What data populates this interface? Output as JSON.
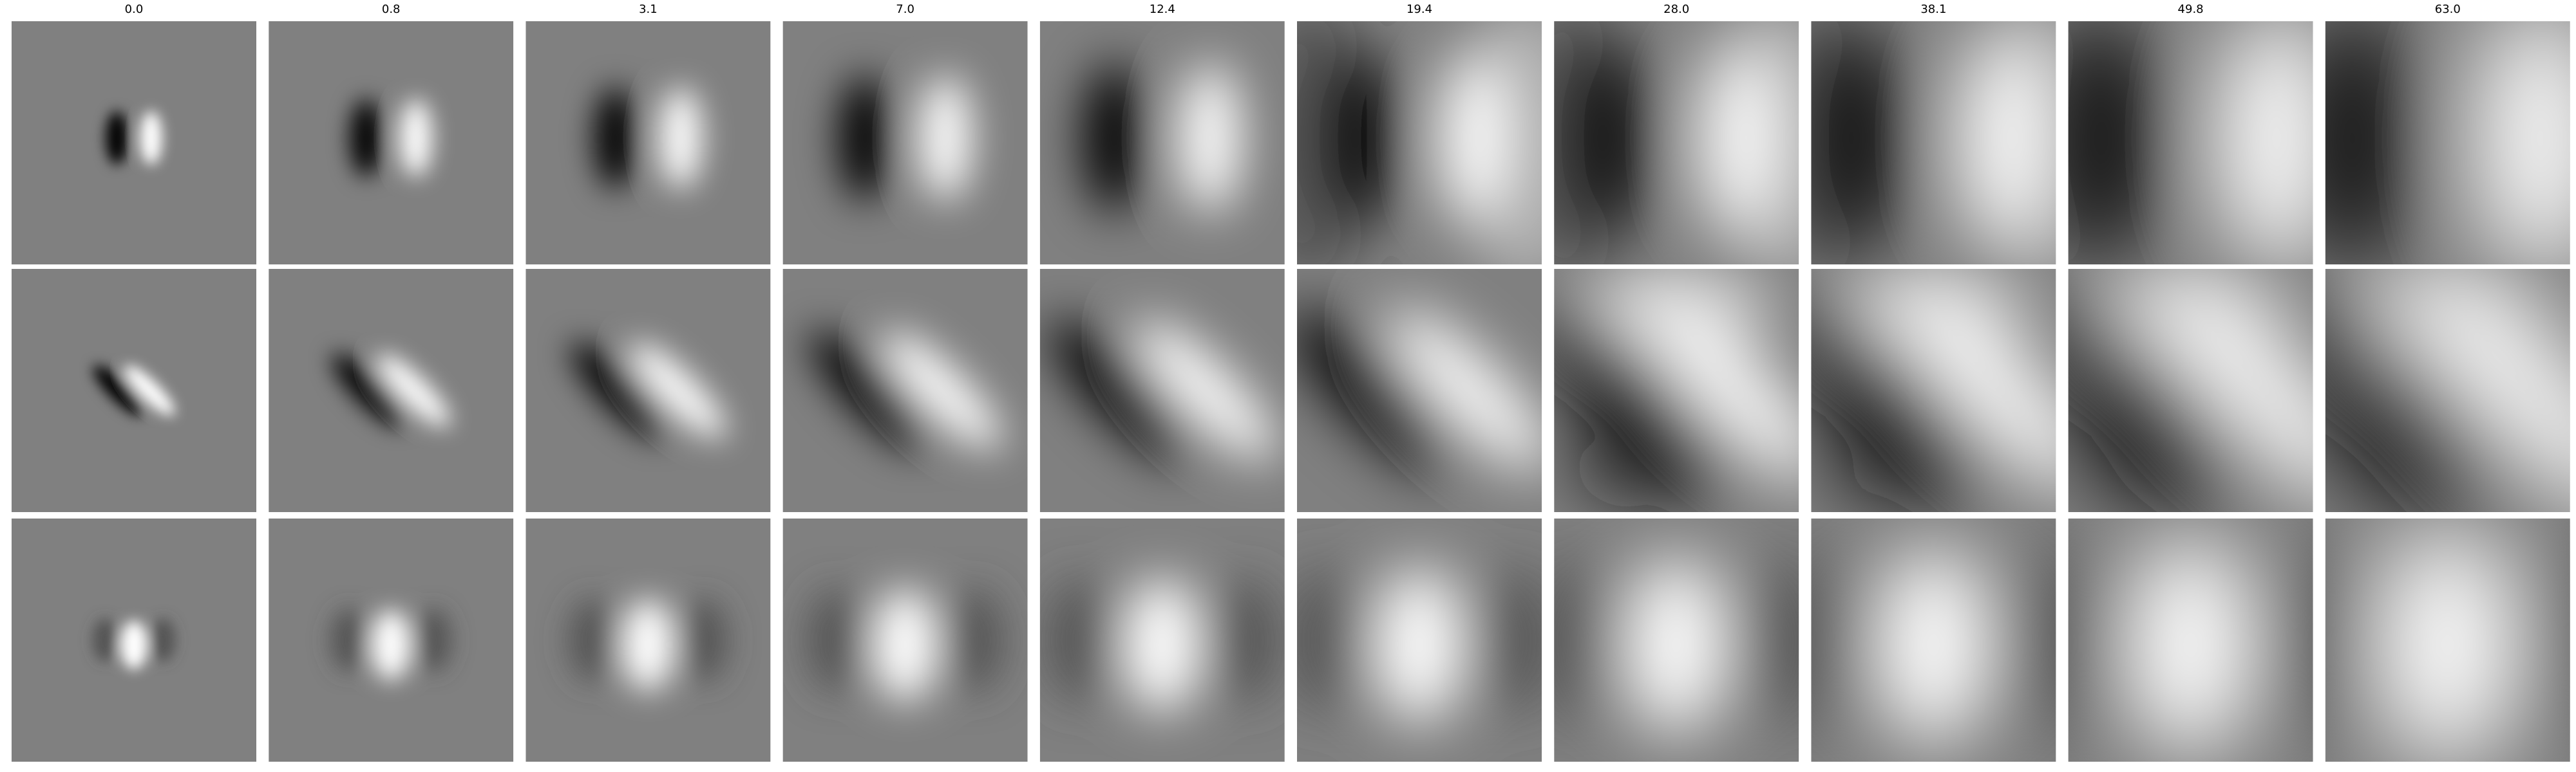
{
  "columns": [
    "0.0",
    "0.8",
    "3.1",
    "7.0",
    "12.4",
    "19.4",
    "28.0",
    "38.1",
    "49.8",
    "63.0"
  ]
}
